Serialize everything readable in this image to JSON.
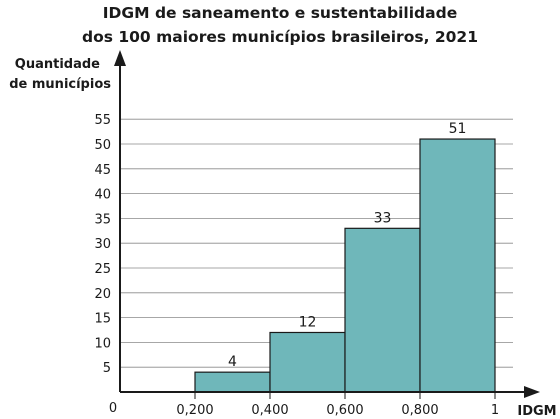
{
  "chart_data": {
    "type": "bar",
    "title_line1": "IDGM de saneamento e sustentabilidade",
    "title_line2": "dos 100 maiores municípios brasileiros, 2021",
    "ylabel_line1": "Quantidade",
    "ylabel_line2": "de municípios",
    "xlabel": "IDGM",
    "origin_label": "0",
    "x_ticks": [
      {
        "value": 0.2,
        "label": "0,200"
      },
      {
        "value": 0.4,
        "label": "0,400"
      },
      {
        "value": 0.6,
        "label": "0,600"
      },
      {
        "value": 0.8,
        "label": "0,800"
      },
      {
        "value": 1.0,
        "label": "1"
      }
    ],
    "y_ticks": [
      5,
      10,
      15,
      20,
      25,
      30,
      35,
      40,
      45,
      50,
      55
    ],
    "bins": [
      {
        "start": 0.2,
        "end": 0.4,
        "value": 4
      },
      {
        "start": 0.4,
        "end": 0.6,
        "value": 12
      },
      {
        "start": 0.6,
        "end": 0.8,
        "value": 33
      },
      {
        "start": 0.8,
        "end": 1.0,
        "value": 51
      }
    ],
    "ylim": [
      0,
      55
    ],
    "grid": true,
    "bar_color": "#6fb7ba",
    "bar_edge_color": "#1a1a1a"
  }
}
